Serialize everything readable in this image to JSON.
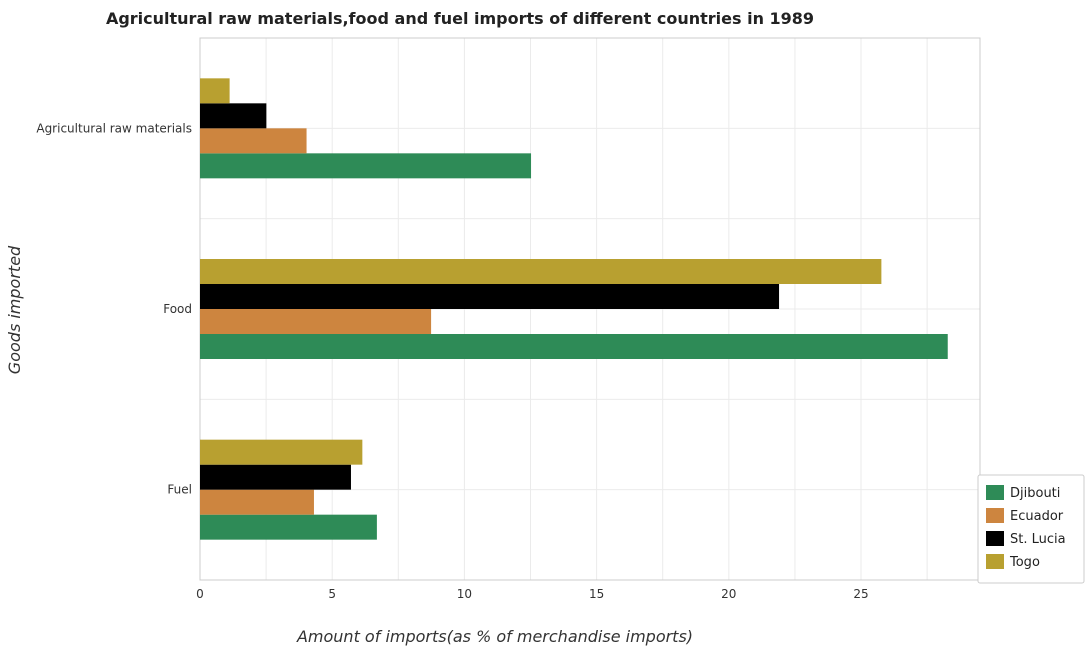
{
  "chart_data": {
    "type": "bar",
    "orientation": "horizontal",
    "title": "Agricultural raw materials,food and fuel imports of different countries in 1989",
    "xlabel": "Amount of imports(as % of merchandise imports)",
    "ylabel": "Goods imported",
    "xlim": [
      0,
      29.5
    ],
    "xticks": [
      0,
      5,
      10,
      15,
      20,
      25
    ],
    "grid": true,
    "legend_position": "bottom-right",
    "categories": [
      "Agricultural raw materials",
      "Food",
      "Fuel"
    ],
    "series": [
      {
        "name": "Djibouti",
        "color": "#2e8b57",
        "values": [
          12.52,
          28.28,
          6.69
        ]
      },
      {
        "name": "Ecuador",
        "color": "#cd853f",
        "values": [
          4.03,
          8.74,
          4.31
        ]
      },
      {
        "name": "St. Lucia",
        "color": "#000000",
        "values": [
          2.51,
          21.9,
          5.71
        ]
      },
      {
        "name": "Togo",
        "color": "#b8a030",
        "values": [
          1.12,
          25.77,
          6.14
        ]
      }
    ]
  }
}
